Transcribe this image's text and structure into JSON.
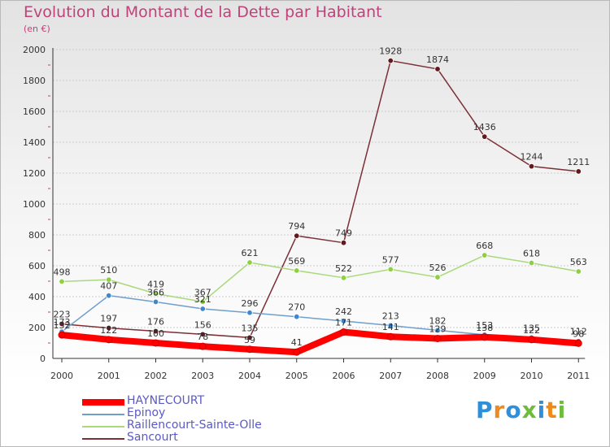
{
  "title": "Evolution du Montant de la Dette par Habitant",
  "subtitle": "(en €)",
  "logo": {
    "text": "Proxiti",
    "colors": [
      "#2f8fd8",
      "#f08a1c",
      "#2f8fd8",
      "#6cbe3a",
      "#2f8fd8",
      "#f08a1c",
      "#6cbe3a"
    ]
  },
  "colors": {
    "title": "#c2417a",
    "axis": "#333333",
    "grid": "#cccccc",
    "tick_minor": "#c2417a"
  },
  "chart_data": {
    "type": "line",
    "categories": [
      "2000",
      "2001",
      "2002",
      "2003",
      "2004",
      "2005",
      "2006",
      "2007",
      "2008",
      "2009",
      "2010",
      "2011"
    ],
    "ylim": [
      0,
      2000
    ],
    "yticks": [
      "0",
      "200",
      "400",
      "600",
      "800",
      "1000",
      "1200",
      "1400",
      "1600",
      "1800",
      "2000"
    ],
    "grid": "horizontal",
    "legend_position": "bottom-left",
    "series": [
      {
        "name": "HAYNECOURT",
        "color": "#ff0000",
        "marker": "#ff0000",
        "emphasis": true,
        "values": [
          152,
          122,
          100,
          78,
          59,
          41,
          171,
          141,
          129,
          138,
          122,
          98
        ]
      },
      {
        "name": "Epinoy",
        "color": "#6f9fcb",
        "marker": "#3f88cf",
        "values": [
          173,
          407,
          366,
          321,
          296,
          270,
          242,
          213,
          182,
          153,
          135,
          112
        ]
      },
      {
        "name": "Raillencourt-Sainte-Olle",
        "color": "#a9d97b",
        "marker": "#8fd043",
        "values": [
          498,
          510,
          419,
          367,
          621,
          569,
          522,
          577,
          526,
          668,
          618,
          563
        ]
      },
      {
        "name": "Sancourt",
        "color": "#7b2f37",
        "marker": "#5e1a1e",
        "values": [
          223,
          197,
          176,
          156,
          135,
          794,
          749,
          1928,
          1874,
          1436,
          1244,
          1211
        ]
      }
    ]
  }
}
